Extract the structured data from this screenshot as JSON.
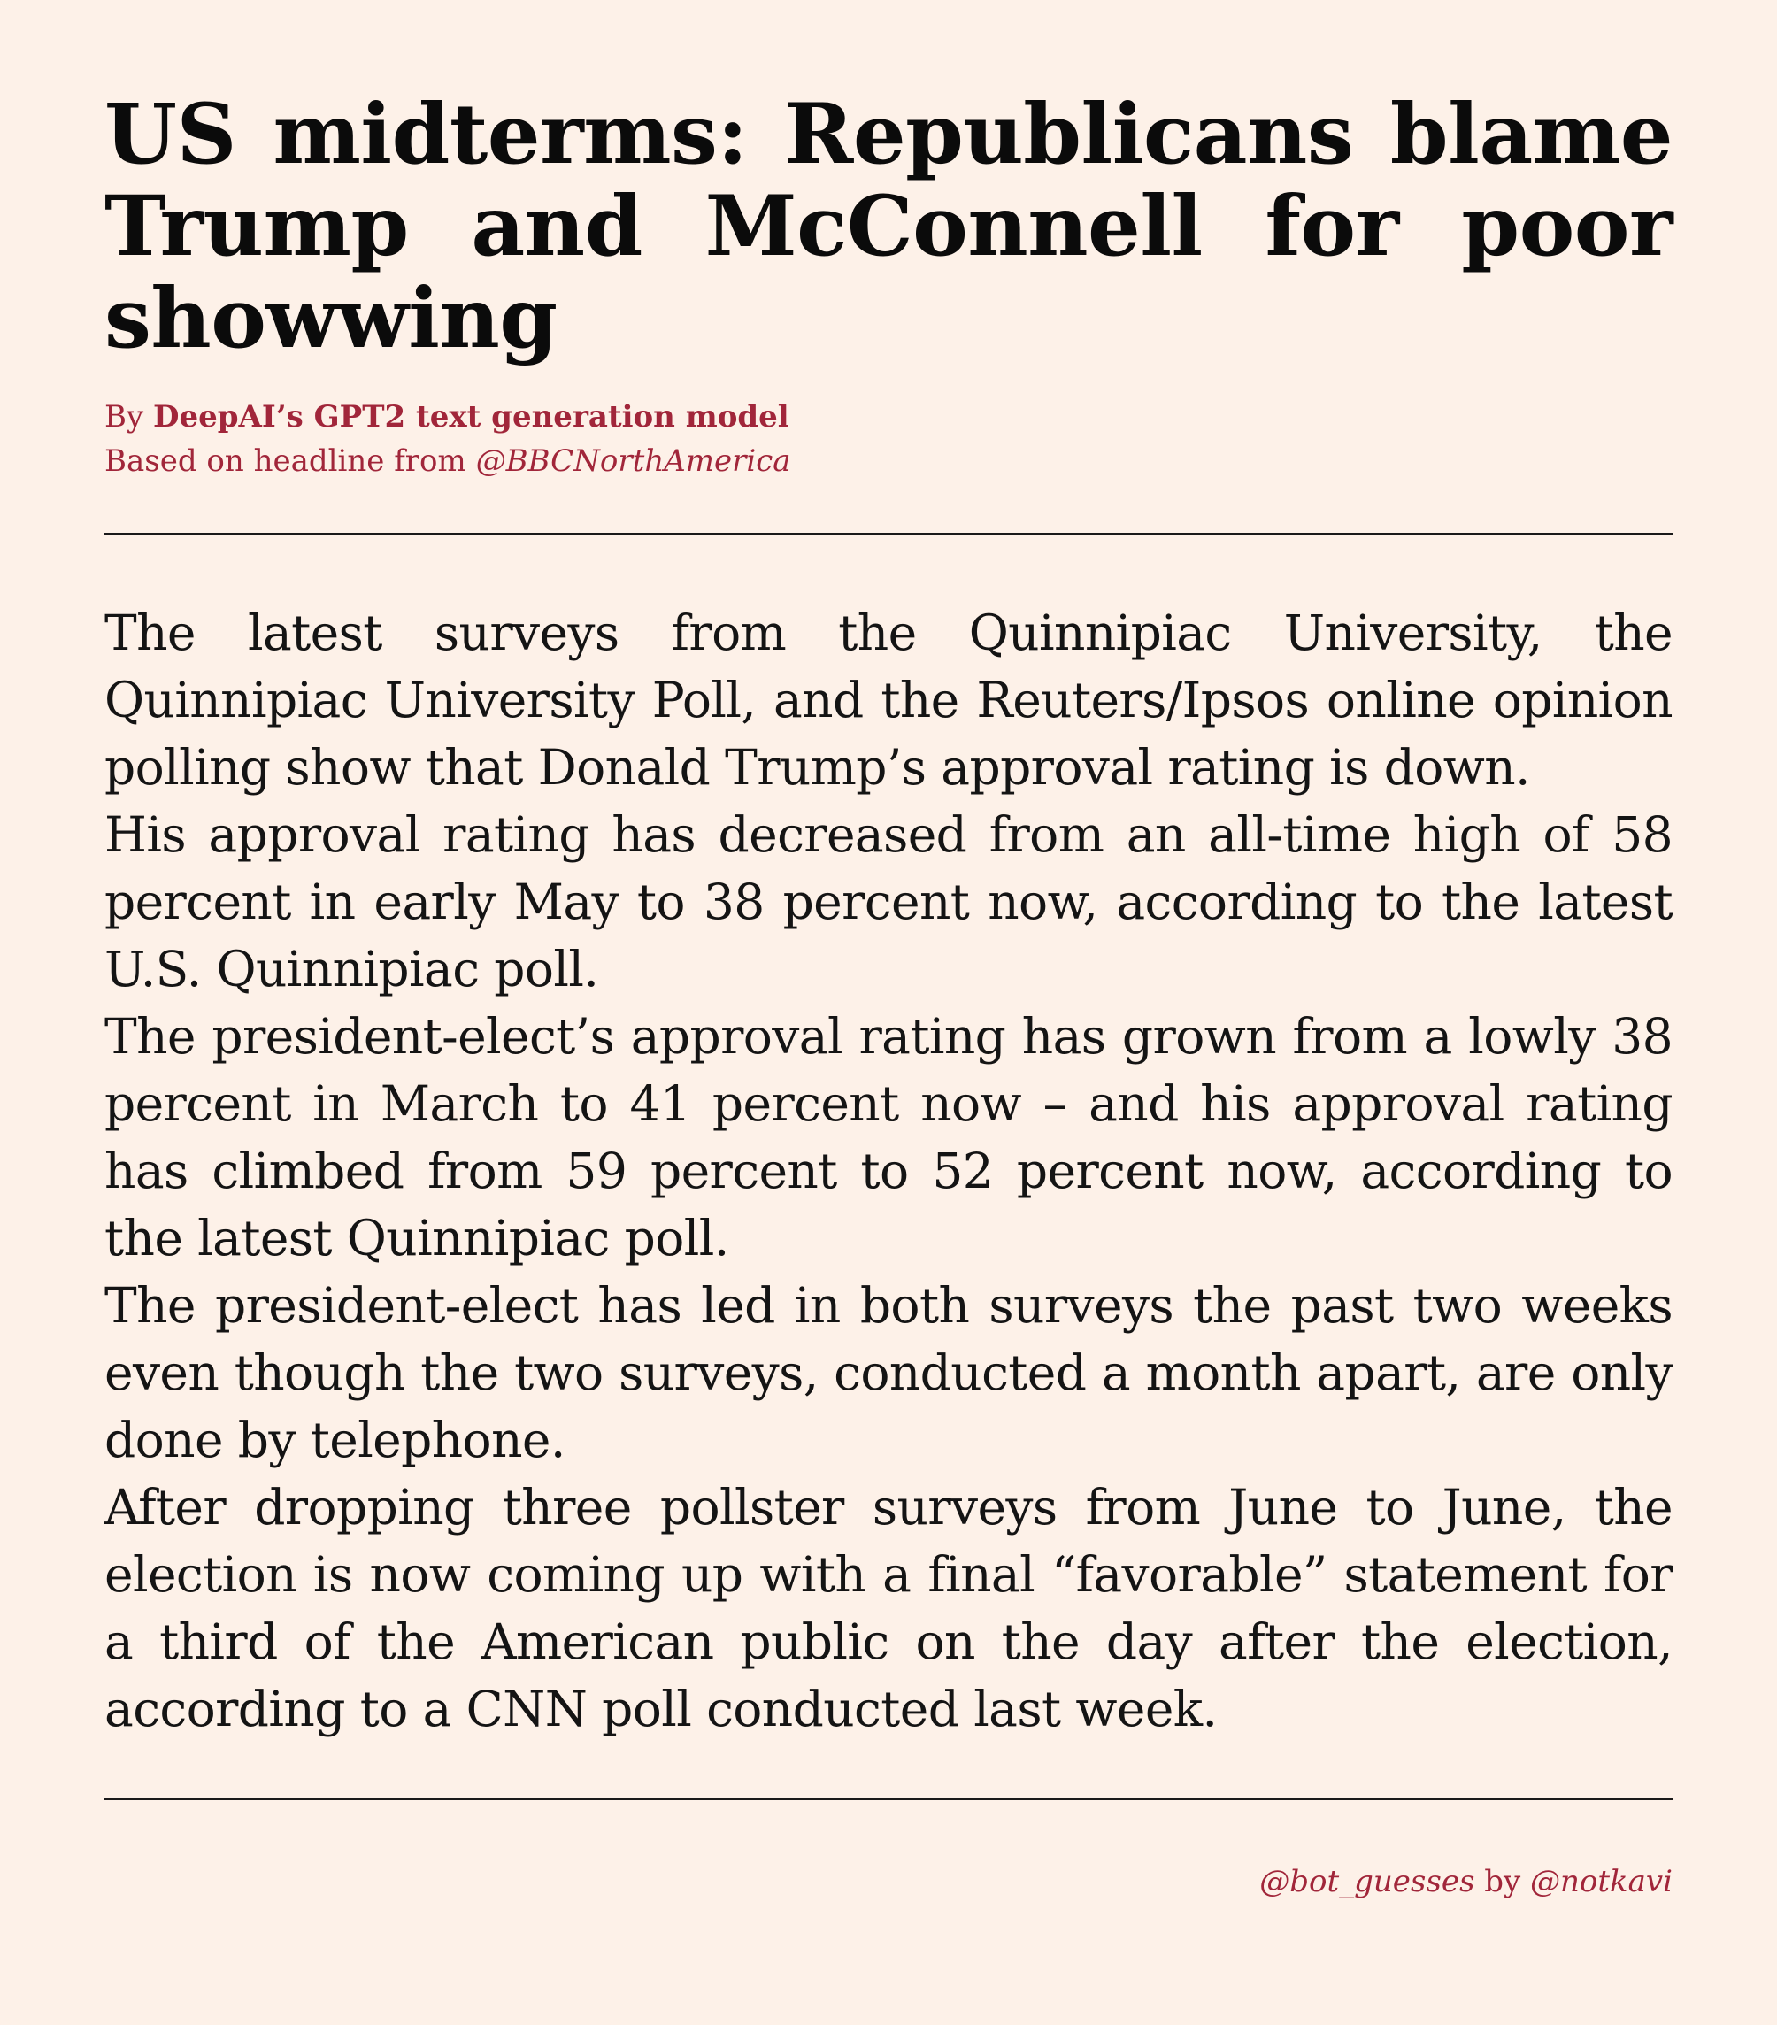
{
  "article": {
    "headline": "US midterms: Republicans blame Trump and McConnell for poor show­wing",
    "byline": {
      "by_prefix": "By ",
      "author": "DeepAI’s GPT2 text generation model",
      "based_on_prefix": "Based on headline from ",
      "source_handle": "@BBCNorthAmerica"
    },
    "paragraphs": [
      "The latest surveys from the Quinnipiac University, the Quinnipiac University Poll, and the Reuters/Ipsos online opinion polling show that Donald Trump’s approval rating is down.",
      "His approval rating has decreased from an all-time high of 58 per­cent in early May to 38 percent now, according to the latest U.S. Quinnipiac poll.",
      "The president-elect’s approval rating has grown from a lowly 38 percent in March to 41 percent now – and his approval rating has climbed from 59 percent to 52 percent now, according to the latest Quinnipiac poll.",
      "The president-elect has led in both surveys the past two weeks even though the two surveys, conducted a month apart, are only done by telephone.",
      "After dropping three pollster surveys from June to June, the election is now coming up with a final “favorable” statement for a third of the American public on the day after the election, according to a CNN poll conducted last week."
    ]
  },
  "footer": {
    "bot_handle": "@bot_guesses",
    "by_word": " by ",
    "creator_handle": "@notkavi"
  },
  "colors": {
    "background": "#fdf1e8",
    "accent": "#a1263a",
    "text": "#141414"
  }
}
